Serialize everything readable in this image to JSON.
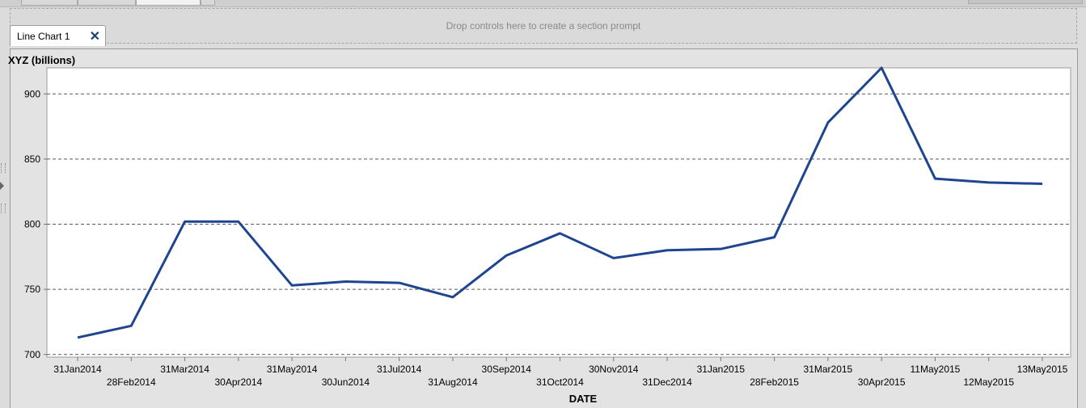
{
  "top_tabs": [
    {
      "state": "inactive"
    },
    {
      "state": "inactive"
    },
    {
      "state": "active"
    }
  ],
  "prompt_area": {
    "text": "Drop controls here to create a section prompt"
  },
  "object_tab": {
    "label": "Line Chart 1",
    "close_icon": "close-icon",
    "close_glyph": "✕"
  },
  "colors": {
    "line": "#1f4590",
    "close": "#1f3f73"
  },
  "chart_data": {
    "type": "line",
    "title": "",
    "ylabel": "XYZ (billions)",
    "xlabel": "DATE",
    "ylim": [
      698,
      920
    ],
    "yticks": [
      700,
      750,
      800,
      850,
      900
    ],
    "grid": true,
    "categories": [
      "31Jan2014",
      "28Feb2014",
      "31Mar2014",
      "30Apr2014",
      "31May2014",
      "30Jun2014",
      "31Jul2014",
      "31Aug2014",
      "30Sep2014",
      "31Oct2014",
      "30Nov2014",
      "31Dec2014",
      "31Jan2015",
      "28Feb2015",
      "31Mar2015",
      "30Apr2015",
      "11May2015",
      "12May2015",
      "13May2015"
    ],
    "series": [
      {
        "values": [
          713,
          722,
          802,
          802,
          753,
          756,
          755,
          744,
          776,
          793,
          774,
          780,
          781,
          790,
          878,
          920,
          835,
          832,
          831
        ]
      }
    ]
  }
}
